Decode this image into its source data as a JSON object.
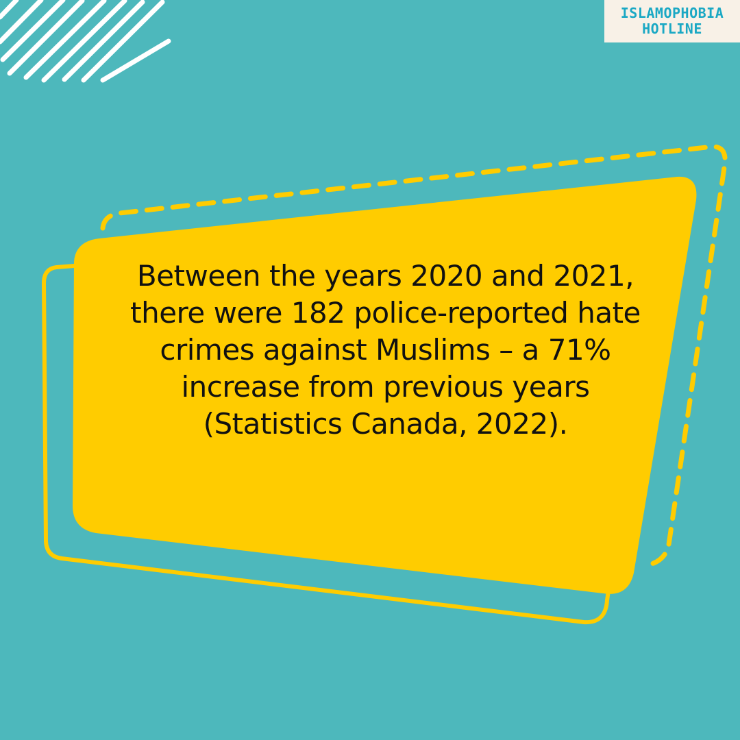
{
  "brand": {
    "line1": "ISLAMOPHOBIA",
    "line2": "HOTLINE"
  },
  "quote": {
    "text": "Between the years 2020 and 2021, there were 182 police-reported hate crimes against Muslims – a 71% increase from previous years (Statistics Canada, 2022)."
  },
  "colors": {
    "background": "#4db8bc",
    "yellow": "#ffcc00",
    "white": "#ffffff",
    "badge_bg": "#f8f1e7",
    "badge_text": "#1aa8c4",
    "text": "#111111"
  },
  "icons": {
    "decorative_stripes": "diagonal-stripes-icon"
  }
}
